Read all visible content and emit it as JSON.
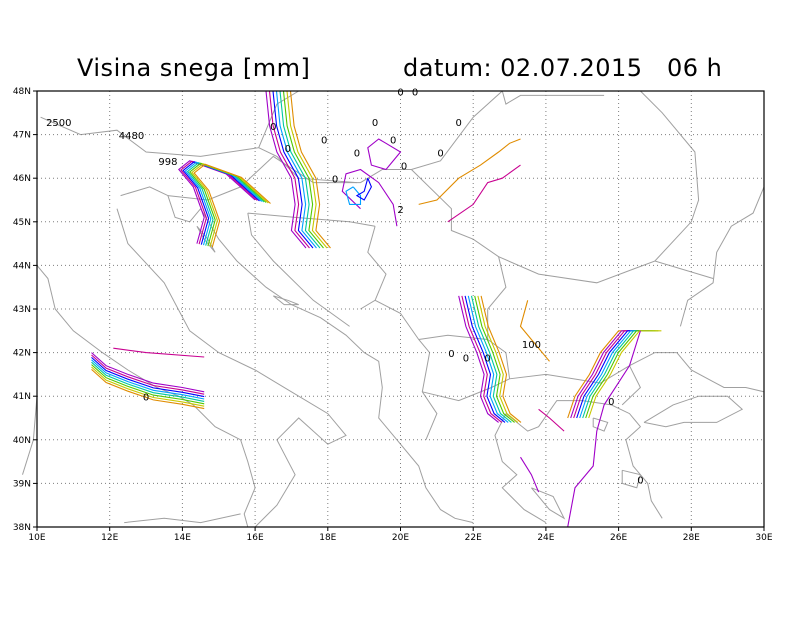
{
  "title": "Visina snega [mm]",
  "date_label": "datum: 02.07.2015   06 h",
  "colors": {
    "frame": "#000000",
    "grid": "#7f7f7f",
    "coast": "#a0a0a0",
    "contours": [
      "#a000c8",
      "#c80090",
      "#0000ff",
      "#00a0ff",
      "#00c8a0",
      "#50c800",
      "#c8c800",
      "#e08c00"
    ]
  },
  "map": {
    "lon_range": [
      10,
      30
    ],
    "lat_range": [
      38,
      48
    ],
    "x_ticks": [
      "10E",
      "12E",
      "14E",
      "16E",
      "18E",
      "20E",
      "22E",
      "24E",
      "26E",
      "28E",
      "30E"
    ],
    "y_ticks": [
      "38N",
      "39N",
      "40N",
      "41N",
      "42N",
      "43N",
      "44N",
      "45N",
      "46N",
      "47N",
      "48N"
    ],
    "contour_labels": [
      {
        "text": "2500",
        "lon": 10.6,
        "lat": 47.2
      },
      {
        "text": "4480",
        "lon": 12.6,
        "lat": 46.9
      },
      {
        "text": "998",
        "lon": 13.6,
        "lat": 46.3
      },
      {
        "text": "0",
        "lon": 20.0,
        "lat": 47.9
      },
      {
        "text": "0",
        "lon": 20.4,
        "lat": 47.9
      },
      {
        "text": "0",
        "lon": 19.3,
        "lat": 47.2
      },
      {
        "text": "0",
        "lon": 21.6,
        "lat": 47.2
      },
      {
        "text": "0",
        "lon": 16.5,
        "lat": 47.1
      },
      {
        "text": "0",
        "lon": 17.9,
        "lat": 46.8
      },
      {
        "text": "0",
        "lon": 19.8,
        "lat": 46.8
      },
      {
        "text": "0",
        "lon": 16.9,
        "lat": 46.6
      },
      {
        "text": "0",
        "lon": 18.8,
        "lat": 46.5
      },
      {
        "text": "0",
        "lon": 21.1,
        "lat": 46.5
      },
      {
        "text": "0",
        "lon": 20.1,
        "lat": 46.2
      },
      {
        "text": "0",
        "lon": 18.2,
        "lat": 45.9
      },
      {
        "text": "2",
        "lon": 20.0,
        "lat": 45.2
      },
      {
        "text": "0",
        "lon": 21.4,
        "lat": 41.9
      },
      {
        "text": "0",
        "lon": 21.8,
        "lat": 41.8
      },
      {
        "text": "0",
        "lon": 22.4,
        "lat": 41.8
      },
      {
        "text": "100",
        "lon": 23.6,
        "lat": 42.1
      },
      {
        "text": "0",
        "lon": 13.0,
        "lat": 40.9
      },
      {
        "text": "0",
        "lon": 25.8,
        "lat": 40.8
      },
      {
        "text": "0",
        "lon": 26.6,
        "lat": 39.0
      }
    ]
  }
}
